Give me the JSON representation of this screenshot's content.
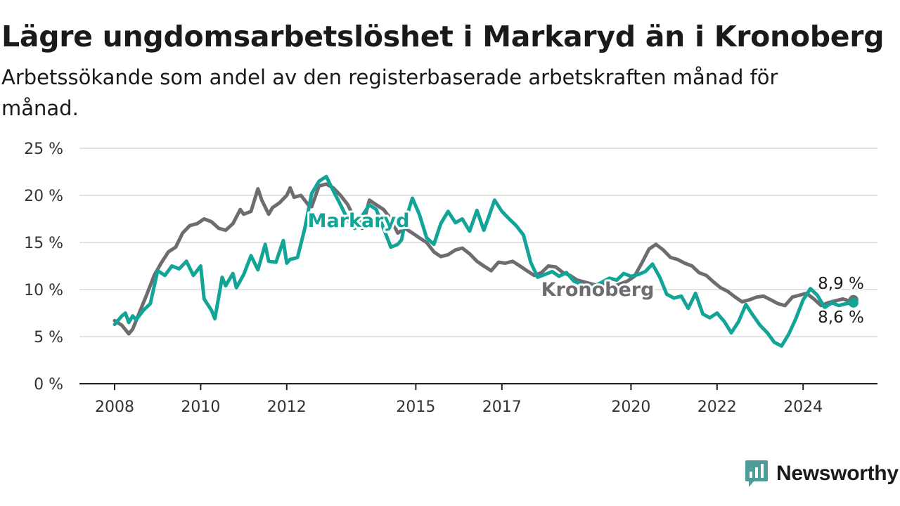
{
  "brand": {
    "name": "Newsworthy",
    "color": "#4e9c97",
    "icon": "newsworthy-logo-icon"
  },
  "chart_data": {
    "type": "line",
    "title": "Lägre ungdomsarbetslöshet i Markaryd än i Kronoberg",
    "subtitle": "Arbetssökande som andel av den registerbaserade arbetskraften månad för månad.",
    "xlabel": "",
    "ylabel": "",
    "xlim": [
      2008,
      2025.75
    ],
    "ylim": [
      0,
      25
    ],
    "x_ticks": [
      2008,
      2010,
      2012,
      2015,
      2017,
      2020,
      2022,
      2024
    ],
    "y_ticks": [
      0,
      5,
      10,
      15,
      20,
      25
    ],
    "y_tick_labels": [
      "0 %",
      "5 %",
      "10 %",
      "15 %",
      "20 %",
      "25 %"
    ],
    "grid": "horizontal",
    "legend": "direct labels on lines",
    "series": [
      {
        "name": "Markaryd",
        "color": "#12a597",
        "x": [
          2008.0,
          2008.17,
          2008.25,
          2008.33,
          2008.42,
          2008.5,
          2008.67,
          2008.83,
          2009.0,
          2009.17,
          2009.33,
          2009.5,
          2009.67,
          2009.83,
          2010.0,
          2010.08,
          2010.25,
          2010.33,
          2010.5,
          2010.58,
          2010.75,
          2010.83,
          2011.0,
          2011.17,
          2011.33,
          2011.5,
          2011.58,
          2011.75,
          2011.92,
          2012.0,
          2012.08,
          2012.17,
          2012.25,
          2012.42,
          2012.58,
          2012.75,
          2012.92,
          2013.08,
          2013.25,
          2013.42,
          2013.58,
          2013.75,
          2013.92,
          2014.08,
          2014.25,
          2014.42,
          2014.58,
          2014.67,
          2014.75,
          2014.92,
          2015.08,
          2015.25,
          2015.42,
          2015.58,
          2015.75,
          2015.92,
          2016.08,
          2016.25,
          2016.42,
          2016.58,
          2016.67,
          2016.83,
          2017.0,
          2017.17,
          2017.33,
          2017.5,
          2017.67,
          2017.83,
          2018.0,
          2018.17,
          2018.33,
          2018.5,
          2018.67,
          2018.83,
          2019.0,
          2019.17,
          2019.33,
          2019.5,
          2019.67,
          2019.83,
          2020.0,
          2020.17,
          2020.33,
          2020.5,
          2020.67,
          2020.83,
          2021.0,
          2021.17,
          2021.33,
          2021.5,
          2021.67,
          2021.83,
          2022.0,
          2022.17,
          2022.33,
          2022.5,
          2022.67,
          2022.83,
          2023.0,
          2023.17,
          2023.33,
          2023.5,
          2023.67,
          2023.83,
          2024.0,
          2024.17,
          2024.33,
          2024.5,
          2024.67,
          2024.83,
          2025.0,
          2025.17
        ],
        "values": [
          6.3,
          7.2,
          7.5,
          6.5,
          7.2,
          6.8,
          7.8,
          8.5,
          12.0,
          11.5,
          12.5,
          12.2,
          13.0,
          11.5,
          12.5,
          9.0,
          7.8,
          6.9,
          11.3,
          10.4,
          11.7,
          10.2,
          11.6,
          13.6,
          12.1,
          14.8,
          13.0,
          12.9,
          15.2,
          12.8,
          13.2,
          13.3,
          13.4,
          16.5,
          20.2,
          21.5,
          22.0,
          20.5,
          19.0,
          17.4,
          16.5,
          17.8,
          19.0,
          18.5,
          16.5,
          14.5,
          14.8,
          15.3,
          17.2,
          19.7,
          18.0,
          15.5,
          14.8,
          17.0,
          18.3,
          17.1,
          17.5,
          16.2,
          18.4,
          16.3,
          17.4,
          19.5,
          18.3,
          17.5,
          16.8,
          15.8,
          12.9,
          11.3,
          11.6,
          11.9,
          11.4,
          11.8,
          10.9,
          10.6,
          10.3,
          10.4,
          10.8,
          11.2,
          11.0,
          11.7,
          11.4,
          11.6,
          11.9,
          12.7,
          11.3,
          9.5,
          9.1,
          9.3,
          8.0,
          9.6,
          7.4,
          7.0,
          7.5,
          6.6,
          5.4,
          6.6,
          8.4,
          7.3,
          6.2,
          5.4,
          4.4,
          4.0,
          5.3,
          6.9,
          8.9,
          10.1,
          9.4,
          8.1,
          8.6,
          8.3,
          8.5,
          8.6
        ]
      },
      {
        "name": "Kronoberg",
        "color": "#6f6c71",
        "x": [
          2008.0,
          2008.17,
          2008.33,
          2008.42,
          2008.58,
          2008.75,
          2008.92,
          2009.08,
          2009.25,
          2009.42,
          2009.58,
          2009.75,
          2009.92,
          2010.08,
          2010.25,
          2010.42,
          2010.58,
          2010.75,
          2010.92,
          2011.0,
          2011.17,
          2011.33,
          2011.42,
          2011.58,
          2011.67,
          2011.83,
          2012.0,
          2012.08,
          2012.17,
          2012.33,
          2012.5,
          2012.58,
          2012.75,
          2012.92,
          2013.08,
          2013.25,
          2013.42,
          2013.58,
          2013.75,
          2013.92,
          2014.08,
          2014.25,
          2014.42,
          2014.58,
          2014.75,
          2014.92,
          2015.08,
          2015.25,
          2015.42,
          2015.58,
          2015.75,
          2015.92,
          2016.08,
          2016.25,
          2016.42,
          2016.58,
          2016.75,
          2016.92,
          2017.08,
          2017.25,
          2017.42,
          2017.58,
          2017.75,
          2017.92,
          2018.08,
          2018.25,
          2018.42,
          2018.58,
          2018.75,
          2018.92,
          2019.08,
          2019.25,
          2019.42,
          2019.58,
          2019.75,
          2019.92,
          2020.08,
          2020.25,
          2020.42,
          2020.58,
          2020.75,
          2020.92,
          2021.08,
          2021.25,
          2021.42,
          2021.58,
          2021.75,
          2021.92,
          2022.08,
          2022.25,
          2022.42,
          2022.58,
          2022.75,
          2022.92,
          2023.08,
          2023.25,
          2023.42,
          2023.58,
          2023.75,
          2023.92,
          2024.08,
          2024.25,
          2024.42,
          2024.58,
          2024.75,
          2024.92,
          2025.08,
          2025.17
        ],
        "values": [
          6.7,
          6.2,
          5.3,
          5.8,
          7.6,
          9.5,
          11.5,
          12.8,
          14.0,
          14.5,
          16.0,
          16.8,
          17.0,
          17.5,
          17.2,
          16.5,
          16.3,
          17.0,
          18.5,
          18.0,
          18.3,
          20.7,
          19.5,
          18.0,
          18.7,
          19.2,
          20.0,
          20.8,
          19.8,
          20.0,
          19.0,
          18.8,
          21.0,
          21.2,
          20.8,
          20.0,
          19.0,
          17.5,
          16.5,
          19.5,
          19.0,
          18.5,
          17.5,
          16.0,
          16.5,
          16.0,
          15.5,
          15.0,
          14.0,
          13.5,
          13.7,
          14.2,
          14.4,
          13.8,
          13.0,
          12.5,
          12.0,
          12.9,
          12.8,
          13.0,
          12.5,
          12.0,
          11.5,
          11.8,
          12.5,
          12.4,
          11.8,
          11.5,
          11.0,
          10.8,
          10.6,
          10.4,
          10.5,
          10.3,
          10.6,
          10.9,
          11.4,
          12.8,
          14.3,
          14.8,
          14.2,
          13.4,
          13.2,
          12.8,
          12.5,
          11.8,
          11.5,
          10.8,
          10.2,
          9.8,
          9.2,
          8.7,
          8.9,
          9.2,
          9.3,
          8.9,
          8.5,
          8.3,
          9.2,
          9.4,
          9.6,
          9.0,
          8.3,
          8.6,
          8.8,
          9.0,
          8.8,
          8.9
        ]
      }
    ],
    "annotations": [
      {
        "text": "Markaryd",
        "series": "Markaryd"
      },
      {
        "text": "Kronoberg",
        "series": "Kronoberg"
      },
      {
        "text": "8,9 %",
        "series": "Kronoberg"
      },
      {
        "text": "8,6 %",
        "series": "Markaryd"
      }
    ]
  }
}
